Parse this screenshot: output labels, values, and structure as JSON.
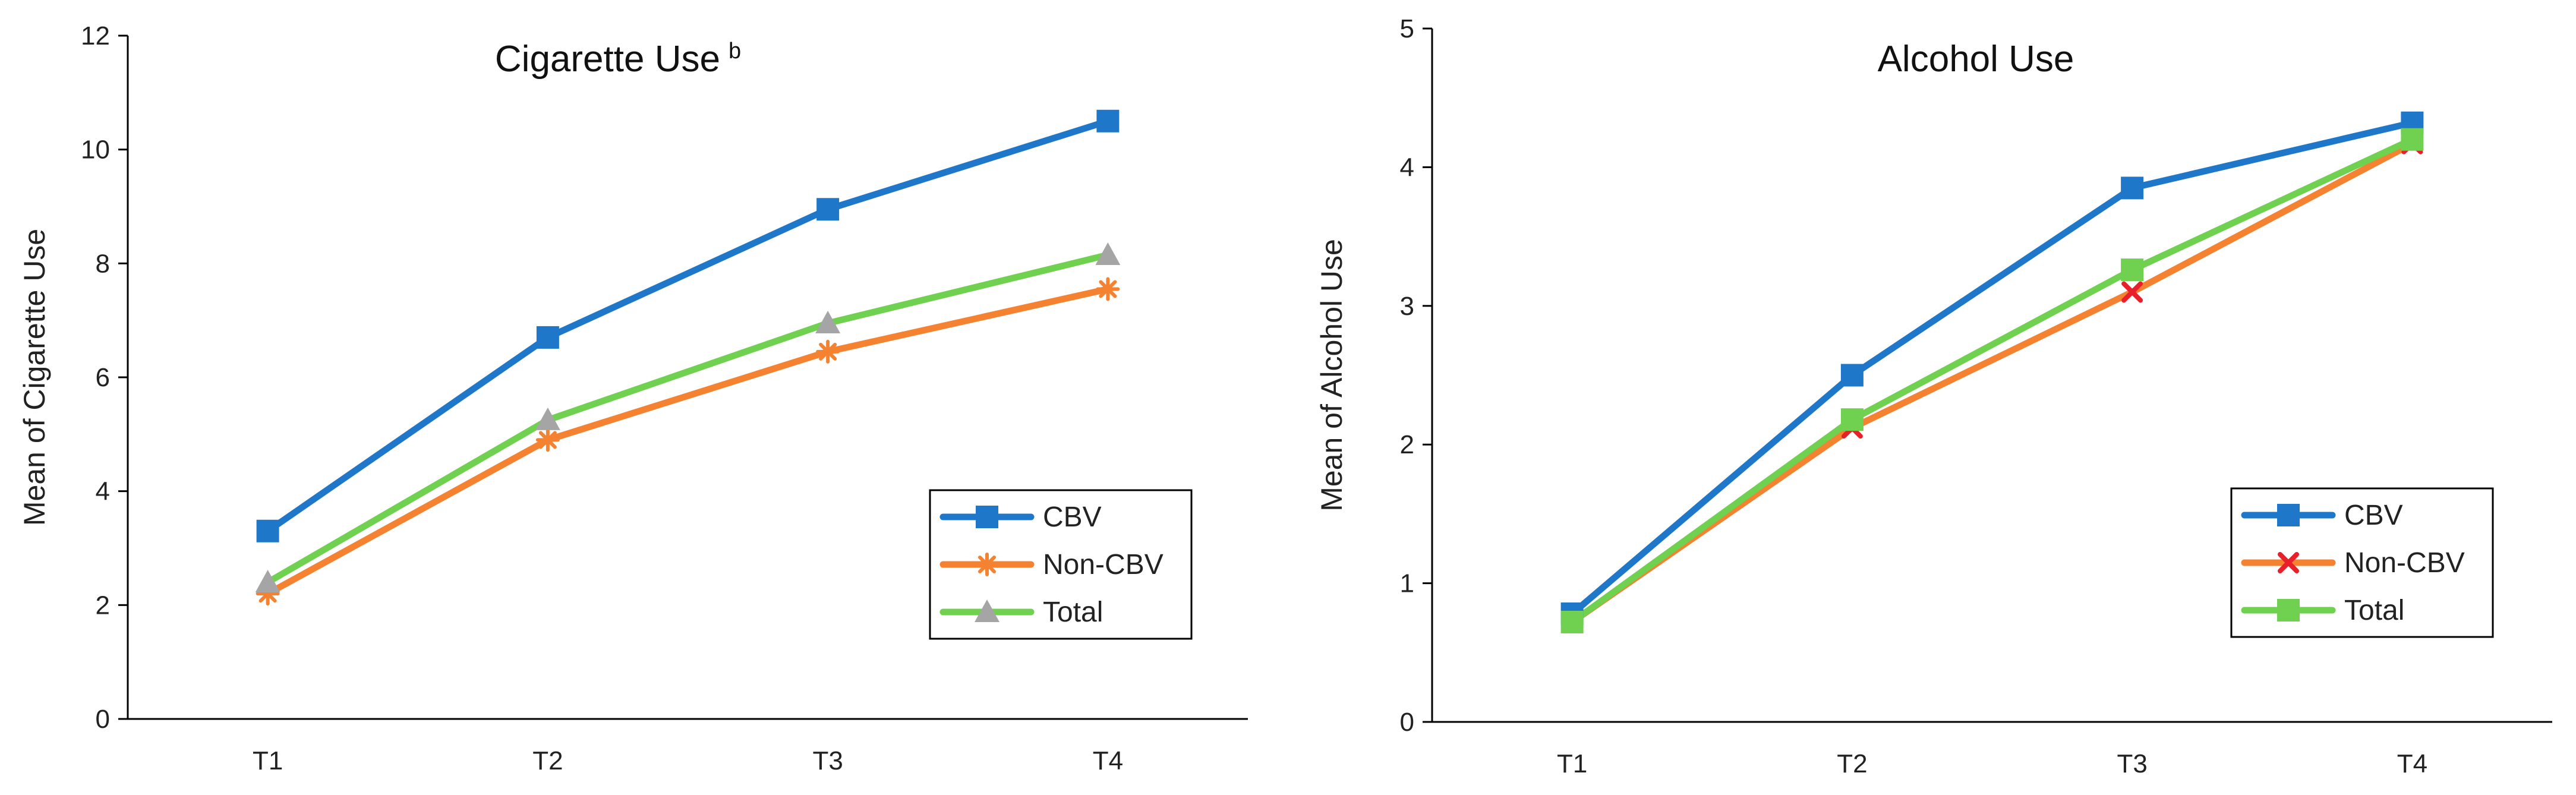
{
  "chart_data": [
    {
      "type": "line",
      "title": "Cigarette Use",
      "title_superscript": "b",
      "xlabel": "",
      "ylabel": "Mean of Cigarette Use",
      "categories": [
        "T1",
        "T2",
        "T3",
        "T4"
      ],
      "ylim": [
        0,
        12
      ],
      "yticks": [
        0,
        2,
        4,
        6,
        8,
        10,
        12
      ],
      "grid": false,
      "legend_position": "bottom-right",
      "series": [
        {
          "name": "CBV",
          "values": [
            3.3,
            6.7,
            8.95,
            10.5
          ],
          "color": "#1F77C9",
          "marker": "square",
          "marker_color": "#1F77C9"
        },
        {
          "name": "Non-CBV",
          "values": [
            2.2,
            4.9,
            6.45,
            7.55
          ],
          "color": "#F58231",
          "marker": "star",
          "marker_color": "#F58231"
        },
        {
          "name": "Total",
          "values": [
            2.4,
            5.25,
            6.95,
            8.15
          ],
          "color": "#6FD14F",
          "marker": "triangle",
          "marker_color": "#A5A5A5"
        }
      ]
    },
    {
      "type": "line",
      "title": "Alcohol Use",
      "xlabel": "",
      "ylabel": "Mean of Alcohol Use",
      "categories": [
        "T1",
        "T2",
        "T3",
        "T4"
      ],
      "ylim": [
        0,
        5
      ],
      "yticks": [
        0,
        1,
        2,
        3,
        4,
        5
      ],
      "grid": false,
      "legend_position": "bottom-right",
      "series": [
        {
          "name": "CBV",
          "values": [
            0.78,
            2.5,
            3.85,
            4.32
          ],
          "color": "#1F77C9",
          "marker": "square",
          "marker_color": "#1F77C9"
        },
        {
          "name": "Non-CBV",
          "values": [
            0.72,
            2.12,
            3.1,
            4.17
          ],
          "color": "#F58231",
          "marker": "x",
          "marker_color": "#E8202A"
        },
        {
          "name": "Total",
          "values": [
            0.72,
            2.18,
            3.26,
            4.2
          ],
          "color": "#6FD14F",
          "marker": "square",
          "marker_color": "#6FD14F"
        }
      ]
    }
  ]
}
